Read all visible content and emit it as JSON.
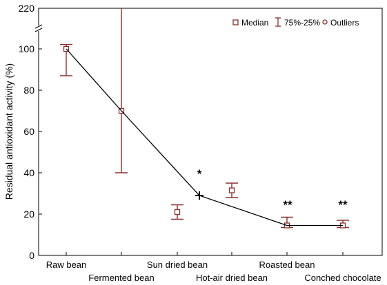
{
  "chart_data": {
    "type": "box",
    "ylabel": "Residual antioxidant activity (%)",
    "y_axis": {
      "break_between": [
        100,
        220
      ],
      "ticks": [
        {
          "value": 0,
          "label": "0"
        },
        {
          "value": 20,
          "label": "20"
        },
        {
          "value": 40,
          "label": "40"
        },
        {
          "value": 60,
          "label": "60"
        },
        {
          "value": 80,
          "label": "80"
        },
        {
          "value": 100,
          "label": "100"
        },
        {
          "value": 220,
          "label": "220"
        }
      ]
    },
    "categories": [
      "Raw bean",
      "Fermented bean",
      "Sun dried bean",
      "Hot-air dried bean",
      "Roasted bean",
      "Conched chocolate"
    ],
    "series": [
      {
        "category": "Raw bean",
        "median": 100,
        "q75": 113,
        "q25": 87
      },
      {
        "category": "Fermented bean",
        "median": 70,
        "q75": 220,
        "q25": 40
      },
      {
        "category": "Sun dried bean",
        "median": 21,
        "q75": 24.5,
        "q25": 17.5
      },
      {
        "category": "Hot-air dried bean",
        "median": 31.5,
        "q75": 35,
        "q25": 28
      },
      {
        "category": "Roasted bean",
        "median": 14.5,
        "q75": 18.5,
        "q25": 13.5
      },
      {
        "category": "Conched chocolate",
        "median": 14.5,
        "q75": 17,
        "q25": 13.5
      }
    ],
    "trend_line": [
      {
        "x": "Raw bean",
        "y": 100
      },
      {
        "x": "Fermented bean",
        "y": 70
      },
      {
        "x": "Sun dried bean | Hot-air dried bean",
        "y": 29
      },
      {
        "x": "Roasted bean",
        "y": 14.5
      },
      {
        "x": "Conched chocolate",
        "y": 14.5
      }
    ],
    "annotations": [
      {
        "text": "*",
        "near": "Sun dried bean | Hot-air dried bean"
      },
      {
        "text": "**",
        "near": "Roasted bean"
      },
      {
        "text": "**",
        "near": "Conched chocolate"
      }
    ],
    "legend": {
      "placement": "top-right",
      "items": [
        {
          "symbol": "square",
          "label": "Median"
        },
        {
          "symbol": "errorbar",
          "label": "75%-25%"
        },
        {
          "symbol": "circle",
          "label": "Outliers"
        }
      ]
    },
    "colors": {
      "box": "#8b2e2e",
      "line": "#000000"
    }
  }
}
